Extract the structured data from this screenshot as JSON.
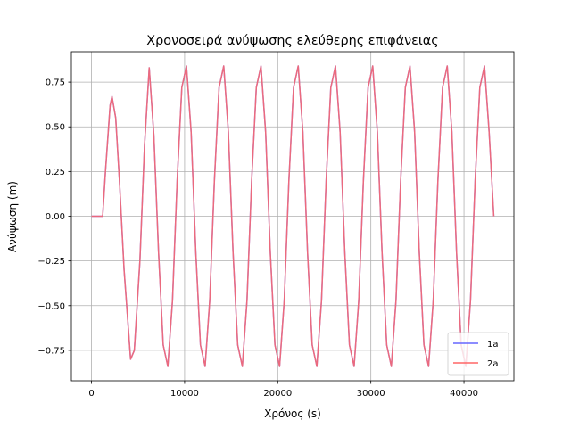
{
  "chart_data": {
    "type": "line",
    "title": "Χρονοσειρά ανύψωσης ελεύθερης επιφάνειας",
    "xlabel": "Χρόνος (s)",
    "ylabel": "Ανύψωση (m)",
    "xlim": [
      -2160,
      45360
    ],
    "ylim": [
      -0.92,
      0.92
    ],
    "xticks": [
      0,
      10000,
      20000,
      30000,
      40000
    ],
    "xtick_labels": [
      "0",
      "10000",
      "20000",
      "30000",
      "40000"
    ],
    "yticks": [
      -0.75,
      -0.5,
      -0.25,
      0.0,
      0.25,
      0.5,
      0.75
    ],
    "ytick_labels": [
      "−0.75",
      "−0.50",
      "−0.25",
      "0.00",
      "0.25",
      "0.50",
      "0.75"
    ],
    "grid": true,
    "legend_position": "lower right",
    "series": [
      {
        "name": "1a",
        "color": "#6666ff",
        "x": [
          0,
          1200,
          1500,
          2000,
          2200,
          2600,
          3000,
          3500,
          4200,
          4600,
          5200,
          5700,
          6200,
          6700,
          7200,
          7700,
          8200,
          8700,
          9200,
          9700,
          10200,
          10700,
          11200,
          11700,
          12200,
          12700,
          13200,
          13700,
          14200,
          14700,
          15200,
          15700,
          16200,
          16700,
          17200,
          17700,
          18200,
          18700,
          19200,
          19700,
          20200,
          20700,
          21200,
          21700,
          22200,
          22700,
          23200,
          23700,
          24200,
          24700,
          25200,
          25700,
          26200,
          26700,
          27200,
          27700,
          28200,
          28700,
          29200,
          29700,
          30200,
          30700,
          31200,
          31700,
          32200,
          32700,
          33200,
          33700,
          34200,
          34700,
          35200,
          35700,
          36200,
          36700,
          37200,
          37700,
          38200,
          38700,
          39200,
          39700,
          40200,
          40700,
          41200,
          41700,
          42200,
          42700,
          43200
        ],
        "y": [
          0.0,
          0.0,
          0.25,
          0.62,
          0.67,
          0.55,
          0.2,
          -0.3,
          -0.8,
          -0.75,
          -0.25,
          0.4,
          0.83,
          0.45,
          -0.2,
          -0.72,
          -0.84,
          -0.47,
          0.2,
          0.72,
          0.84,
          0.47,
          -0.2,
          -0.72,
          -0.84,
          -0.47,
          0.2,
          0.72,
          0.84,
          0.47,
          -0.2,
          -0.72,
          -0.84,
          -0.47,
          0.2,
          0.72,
          0.84,
          0.47,
          -0.2,
          -0.72,
          -0.84,
          -0.47,
          0.2,
          0.72,
          0.84,
          0.47,
          -0.2,
          -0.72,
          -0.84,
          -0.47,
          0.2,
          0.72,
          0.84,
          0.47,
          -0.2,
          -0.72,
          -0.84,
          -0.47,
          0.2,
          0.72,
          0.84,
          0.47,
          -0.2,
          -0.72,
          -0.84,
          -0.47,
          0.2,
          0.72,
          0.84,
          0.47,
          -0.2,
          -0.72,
          -0.84,
          -0.47,
          0.2,
          0.72,
          0.84,
          0.47,
          -0.2,
          -0.72,
          -0.84,
          -0.47,
          0.2,
          0.72,
          0.84,
          0.47,
          0.0
        ]
      },
      {
        "name": "2a",
        "color": "#ff6666",
        "x": [
          0,
          1200,
          1500,
          2000,
          2200,
          2600,
          3000,
          3500,
          4200,
          4600,
          5200,
          5700,
          6200,
          6700,
          7200,
          7700,
          8200,
          8700,
          9200,
          9700,
          10200,
          10700,
          11200,
          11700,
          12200,
          12700,
          13200,
          13700,
          14200,
          14700,
          15200,
          15700,
          16200,
          16700,
          17200,
          17700,
          18200,
          18700,
          19200,
          19700,
          20200,
          20700,
          21200,
          21700,
          22200,
          22700,
          23200,
          23700,
          24200,
          24700,
          25200,
          25700,
          26200,
          26700,
          27200,
          27700,
          28200,
          28700,
          29200,
          29700,
          30200,
          30700,
          31200,
          31700,
          32200,
          32700,
          33200,
          33700,
          34200,
          34700,
          35200,
          35700,
          36200,
          36700,
          37200,
          37700,
          38200,
          38700,
          39200,
          39700,
          40200,
          40700,
          41200,
          41700,
          42200,
          42700,
          43200
        ],
        "y": [
          0.0,
          0.0,
          0.25,
          0.62,
          0.67,
          0.55,
          0.2,
          -0.3,
          -0.8,
          -0.75,
          -0.25,
          0.4,
          0.83,
          0.45,
          -0.2,
          -0.72,
          -0.84,
          -0.47,
          0.2,
          0.72,
          0.84,
          0.47,
          -0.2,
          -0.72,
          -0.84,
          -0.47,
          0.2,
          0.72,
          0.84,
          0.47,
          -0.2,
          -0.72,
          -0.84,
          -0.47,
          0.2,
          0.72,
          0.84,
          0.47,
          -0.2,
          -0.72,
          -0.84,
          -0.47,
          0.2,
          0.72,
          0.84,
          0.47,
          -0.2,
          -0.72,
          -0.84,
          -0.47,
          0.2,
          0.72,
          0.84,
          0.47,
          -0.2,
          -0.72,
          -0.84,
          -0.47,
          0.2,
          0.72,
          0.84,
          0.47,
          -0.2,
          -0.72,
          -0.84,
          -0.47,
          0.2,
          0.72,
          0.84,
          0.47,
          -0.2,
          -0.72,
          -0.84,
          -0.47,
          0.2,
          0.72,
          0.84,
          0.47,
          -0.2,
          -0.72,
          -0.84,
          -0.47,
          0.2,
          0.72,
          0.84,
          0.47,
          0.0
        ]
      }
    ]
  }
}
